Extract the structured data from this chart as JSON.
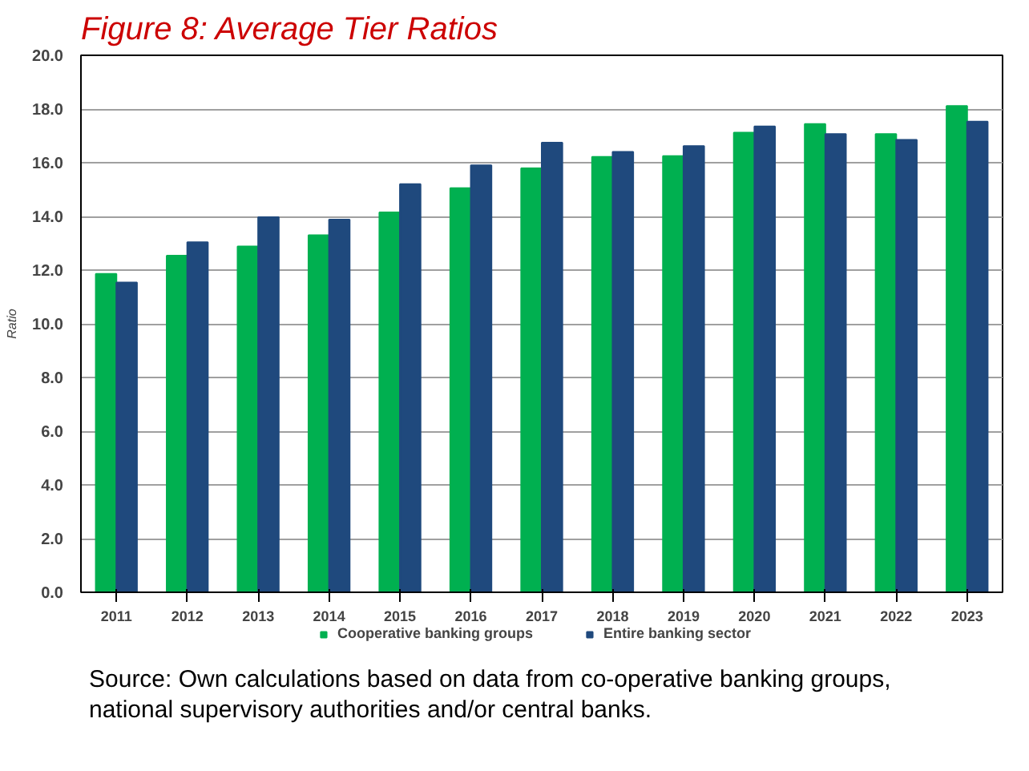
{
  "chart_data": {
    "type": "bar",
    "title": "Figure 8: Average Tier Ratios",
    "ylabel": "Ratio",
    "categories": [
      "2011",
      "2012",
      "2013",
      "2014",
      "2015",
      "2016",
      "2017",
      "2018",
      "2019",
      "2020",
      "2021",
      "2022",
      "2023"
    ],
    "series": [
      {
        "name": "Cooperative banking groups",
        "color": "#00b050",
        "values": [
          11.86,
          12.54,
          12.88,
          13.3,
          14.15,
          15.05,
          15.79,
          16.22,
          16.25,
          17.12,
          17.44,
          17.07,
          18.11
        ]
      },
      {
        "name": "Entire banking sector",
        "color": "#1f497d",
        "values": [
          11.54,
          13.04,
          13.97,
          13.88,
          15.2,
          15.9,
          16.75,
          16.4,
          16.62,
          17.35,
          17.07,
          16.85,
          17.53
        ]
      }
    ],
    "ylim": [
      0,
      20
    ],
    "yticks": [
      {
        "value": 0,
        "label": "0.0"
      },
      {
        "value": 2,
        "label": "2.0"
      },
      {
        "value": 4,
        "label": "4.0"
      },
      {
        "value": 6,
        "label": "6.0"
      },
      {
        "value": 8,
        "label": "8.0"
      },
      {
        "value": 10,
        "label": "10.0"
      },
      {
        "value": 12,
        "label": "12.0"
      },
      {
        "value": 14,
        "label": "14.0"
      },
      {
        "value": 16,
        "label": "16.0"
      },
      {
        "value": 18,
        "label": "18.0"
      },
      {
        "value": 20,
        "label": "20.0"
      }
    ],
    "grid": "y",
    "legend": "bottom",
    "annotations": [
      "Source: Own calculations based on data from co-operative banking groups, national supervisory authorities and/or central banks."
    ]
  }
}
